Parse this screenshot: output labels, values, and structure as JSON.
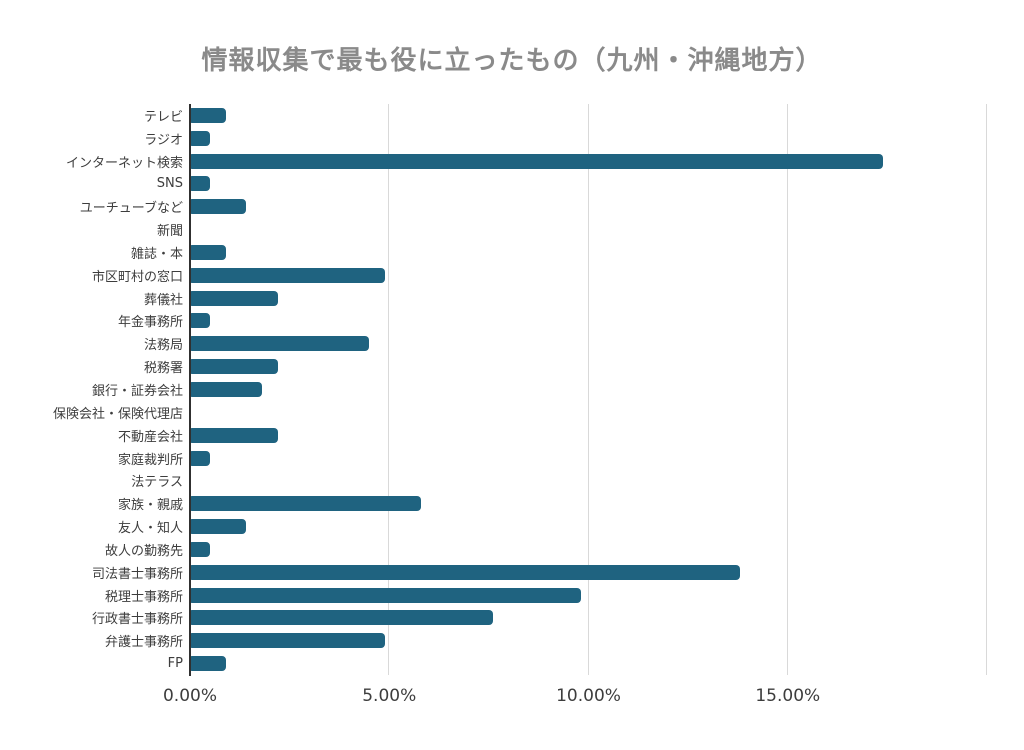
{
  "title": "情報収集で最も役に立ったもの（九州・沖縄地方）",
  "chart_data": {
    "type": "bar",
    "orientation": "horizontal",
    "title": "情報収集で最も役に立ったもの（九州・沖縄地方）",
    "categories": [
      "テレビ",
      "ラジオ",
      "インターネット検索",
      "SNS",
      "ユーチューブなど",
      "新聞",
      "雑誌・本",
      "市区町村の窓口",
      "葬儀社",
      "年金事務所",
      "法務局",
      "税務署",
      "銀行・証券会社",
      "保険会社・保険代理店",
      "不動産会社",
      "家庭裁判所",
      "法テラス",
      "家族・親戚",
      "友人・知人",
      "故人の勤務先",
      "司法書士事務所",
      "税理士事務所",
      "行政書士事務所",
      "弁護士事務所",
      "FP"
    ],
    "values": [
      0.9,
      0.5,
      17.4,
      0.5,
      1.4,
      0,
      0.9,
      4.9,
      2.2,
      0.5,
      4.5,
      2.2,
      1.8,
      0,
      2.2,
      0.5,
      0,
      5.8,
      1.4,
      0.5,
      13.8,
      9.8,
      7.6,
      4.9,
      0.9
    ],
    "value_unit": "%",
    "xlim": [
      0,
      20
    ],
    "x_tick_labels": [
      "0.00%",
      "5.00%",
      "10.00%",
      "15.00%"
    ],
    "x_tick_values": [
      0,
      5,
      10,
      15
    ],
    "gridline_values": [
      5,
      10,
      15,
      20
    ],
    "grid": "vertical-only",
    "legend": "none",
    "bar_color": "#1f6380",
    "axis_line_color": "#303030",
    "gridline_color": "#d9d9d9",
    "title_color": "#8a8a8a",
    "label_color": "#3d3d3d",
    "background_color": "#ffffff"
  }
}
